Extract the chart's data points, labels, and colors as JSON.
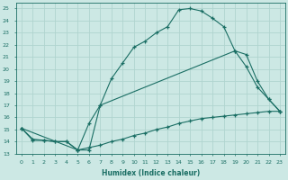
{
  "xlabel": "Humidex (Indice chaleur)",
  "bg_color": "#cce8e4",
  "grid_color": "#b0d4cf",
  "line_color": "#1a6e64",
  "xlim": [
    -0.5,
    23.5
  ],
  "ylim": [
    13,
    25.5
  ],
  "xticks": [
    0,
    1,
    2,
    3,
    4,
    5,
    6,
    7,
    8,
    9,
    10,
    11,
    12,
    13,
    14,
    15,
    16,
    17,
    18,
    19,
    20,
    21,
    22,
    23
  ],
  "yticks": [
    13,
    14,
    15,
    16,
    17,
    18,
    19,
    20,
    21,
    22,
    23,
    24,
    25
  ],
  "curve1": {
    "x": [
      0,
      1,
      2,
      3,
      4,
      5,
      6,
      7,
      8,
      9,
      10,
      11,
      12,
      13,
      14,
      15,
      16,
      17,
      18,
      19,
      20,
      21,
      22,
      23
    ],
    "y": [
      15.1,
      14.1,
      14.1,
      14.0,
      14.0,
      13.3,
      13.3,
      17.0,
      19.2,
      20.5,
      21.8,
      22.3,
      23.0,
      23.5,
      24.9,
      25.0,
      24.8,
      24.2,
      23.5,
      21.5,
      21.2,
      19.0,
      17.5,
      16.5
    ]
  },
  "curve2": {
    "x": [
      0,
      1,
      2,
      3,
      4,
      5,
      6,
      7,
      8,
      9,
      10,
      11,
      12,
      13,
      14,
      15,
      16,
      17,
      18,
      19,
      20,
      21,
      22,
      23
    ],
    "y": [
      15.1,
      14.2,
      14.1,
      14.0,
      14.0,
      13.3,
      13.5,
      13.7,
      14.0,
      14.2,
      14.5,
      14.7,
      15.0,
      15.2,
      15.5,
      15.7,
      15.9,
      16.0,
      16.1,
      16.2,
      16.3,
      16.4,
      16.5,
      16.5
    ]
  },
  "curve3": {
    "x": [
      0,
      5,
      6,
      7,
      19,
      20,
      21,
      22,
      23
    ],
    "y": [
      15.1,
      13.3,
      15.5,
      17.0,
      21.5,
      20.2,
      18.5,
      17.5,
      16.5
    ]
  }
}
